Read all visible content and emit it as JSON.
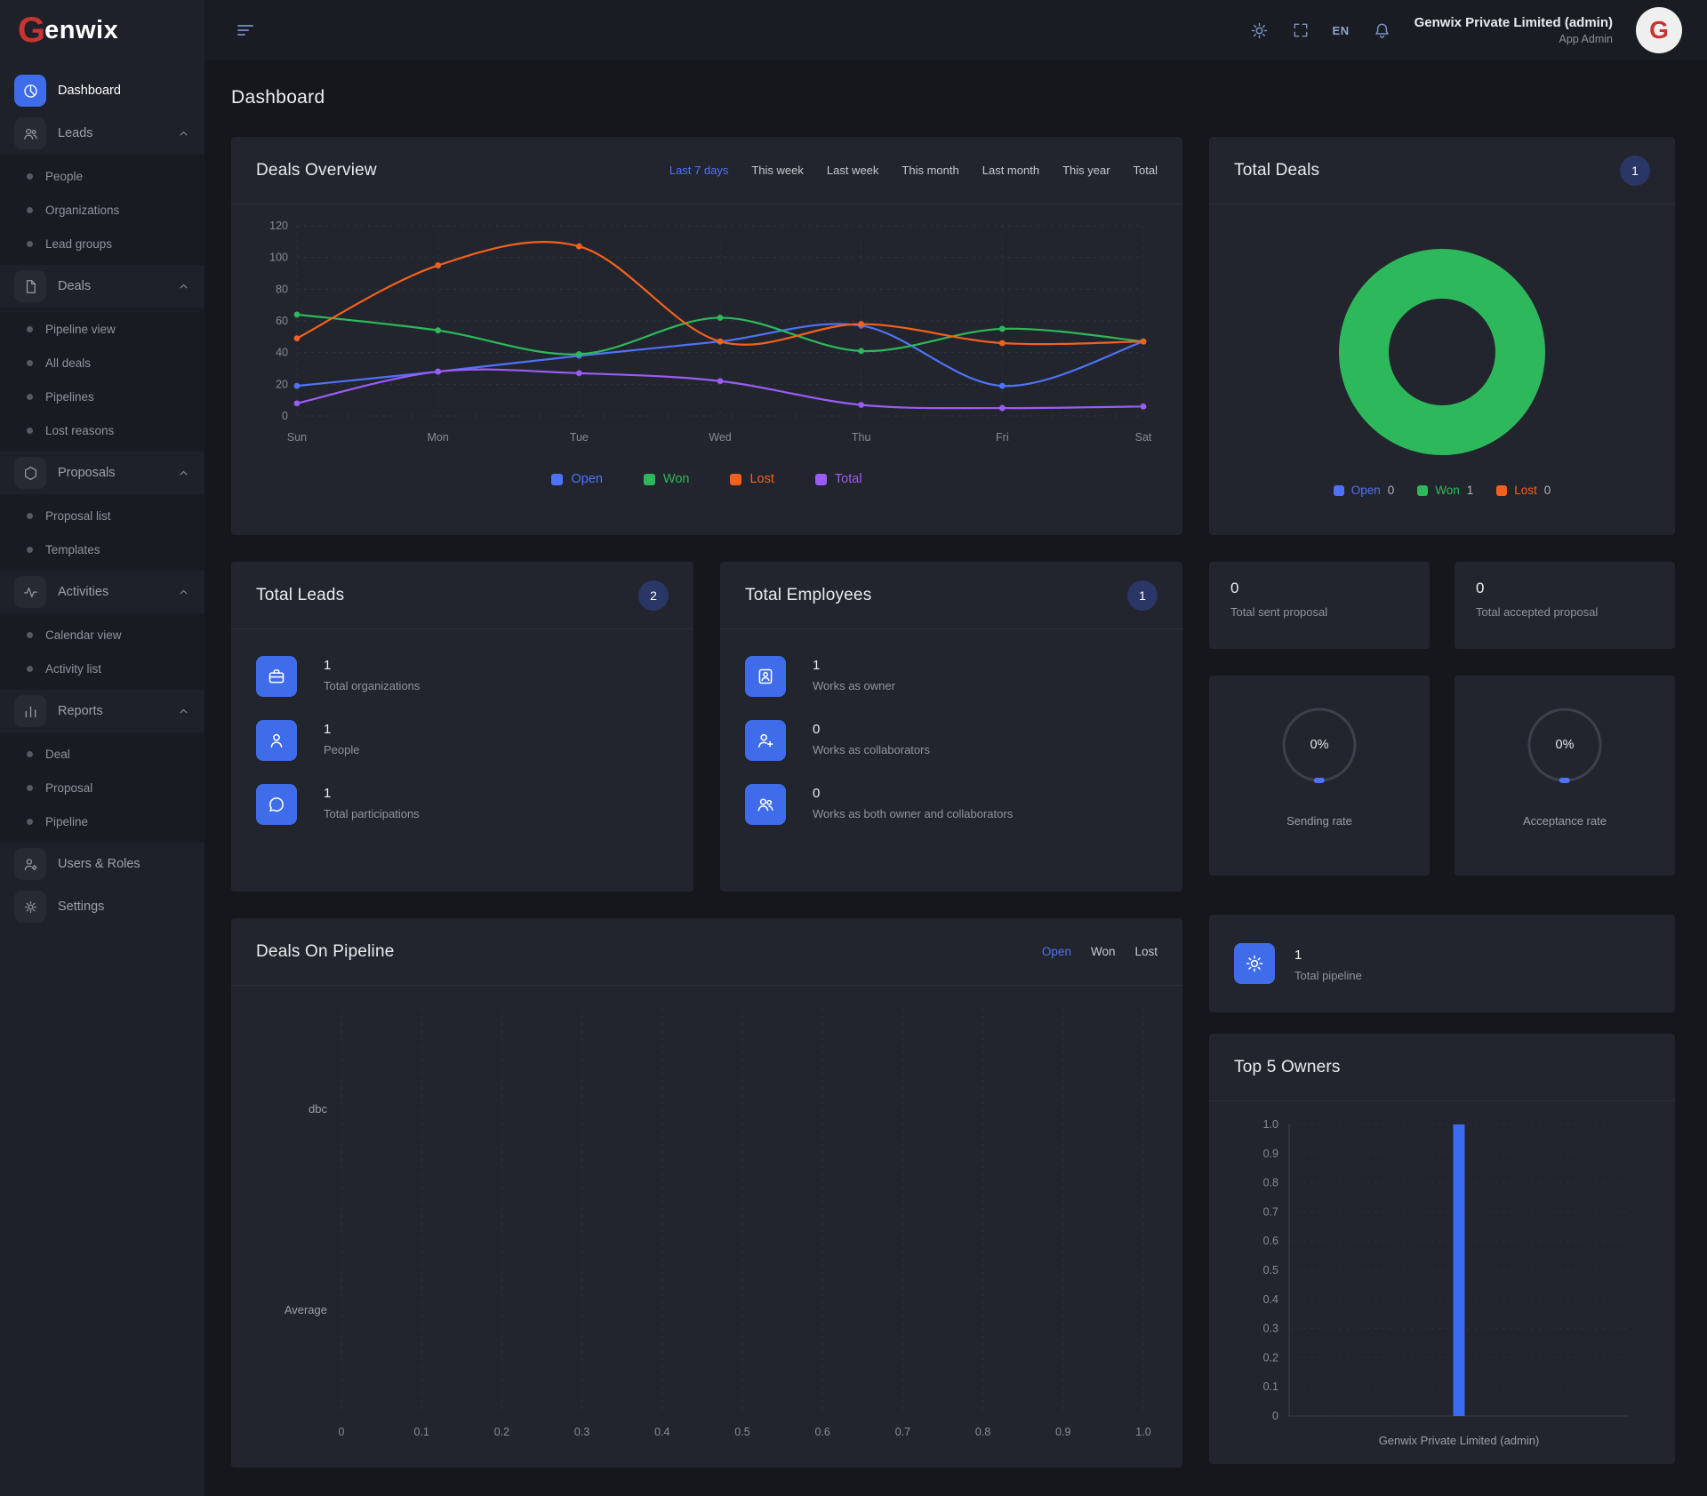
{
  "brand": {
    "name": "Genwix",
    "logo_first": "G",
    "logo_rest": "enwix"
  },
  "topbar": {
    "lang": "EN",
    "company": "Genwix Private Limited (admin)",
    "role": "App Admin"
  },
  "page": {
    "title": "Dashboard"
  },
  "sidebar": {
    "items": [
      {
        "label": "Dashboard",
        "active": true
      },
      {
        "label": "Leads",
        "expanded": true,
        "children": [
          "People",
          "Organizations",
          "Lead groups"
        ]
      },
      {
        "label": "Deals",
        "expanded": true,
        "children": [
          "Pipeline view",
          "All deals",
          "Pipelines",
          "Lost reasons"
        ]
      },
      {
        "label": "Proposals",
        "expanded": true,
        "children": [
          "Proposal list",
          "Templates"
        ]
      },
      {
        "label": "Activities",
        "expanded": true,
        "children": [
          "Calendar view",
          "Activity list"
        ]
      },
      {
        "label": "Reports",
        "expanded": true,
        "children": [
          "Deal",
          "Proposal",
          "Pipeline"
        ]
      },
      {
        "label": "Users & Roles"
      },
      {
        "label": "Settings"
      }
    ]
  },
  "cards": {
    "deals_overview": {
      "title": "Deals Overview",
      "filters": [
        "Last 7 days",
        "This week",
        "Last week",
        "This month",
        "Last month",
        "This year",
        "Total"
      ],
      "active_filter": "Last 7 days"
    },
    "total_deals": {
      "title": "Total Deals",
      "badge": "1"
    },
    "total_leads": {
      "title": "Total Leads",
      "badge": "2",
      "items": [
        {
          "value": "1",
          "label": "Total organizations",
          "icon": "briefcase-icon"
        },
        {
          "value": "1",
          "label": "People",
          "icon": "person-icon"
        },
        {
          "value": "1",
          "label": "Total participations",
          "icon": "chat-icon"
        }
      ]
    },
    "total_employees": {
      "title": "Total Employees",
      "badge": "1",
      "items": [
        {
          "value": "1",
          "label": "Works as owner",
          "icon": "person-badge-icon"
        },
        {
          "value": "0",
          "label": "Works as collaborators",
          "icon": "person-plus-icon"
        },
        {
          "value": "0",
          "label": "Works as both owner and collaborators",
          "icon": "people-icon"
        }
      ]
    },
    "stats": [
      {
        "value": "0",
        "label": "Total sent proposal"
      },
      {
        "value": "0",
        "label": "Total accepted proposal"
      }
    ],
    "gauges": [
      {
        "value": "0%",
        "label": "Sending rate",
        "accent": "#4e73f8"
      },
      {
        "value": "0%",
        "label": "Acceptance rate",
        "accent": "#4e73f8"
      }
    ],
    "deals_on_pipeline": {
      "title": "Deals On Pipeline",
      "tabs": [
        "Open",
        "Won",
        "Lost"
      ],
      "active_tab": "Open"
    },
    "total_pipeline": {
      "value": "1",
      "label": "Total pipeline"
    },
    "top_owners": {
      "title": "Top 5 Owners"
    }
  },
  "chart_data": [
    {
      "id": "deals-overview-chart",
      "type": "line",
      "x": [
        "Sun",
        "Mon",
        "Tue",
        "Wed",
        "Thu",
        "Fri",
        "Sat"
      ],
      "ylim": [
        0,
        120
      ],
      "yticks": [
        "0",
        "20",
        "40",
        "60",
        "80",
        "100",
        "120"
      ],
      "series": [
        {
          "name": "Open",
          "color": "#4e73f8",
          "values": [
            19,
            28,
            38,
            47,
            57,
            19,
            47
          ]
        },
        {
          "name": "Won",
          "color": "#2eb85c",
          "values": [
            64,
            54,
            39,
            62,
            41,
            55,
            47
          ]
        },
        {
          "name": "Lost",
          "color": "#f4611d",
          "values": [
            49,
            95,
            107,
            47,
            58,
            46,
            47
          ]
        },
        {
          "name": "Total",
          "color": "#9b5cf6",
          "values": [
            8,
            28,
            27,
            22,
            7,
            5,
            6
          ]
        }
      ],
      "grid": "dashed",
      "legend_position": "bottom"
    },
    {
      "id": "total-deals-donut",
      "type": "pie",
      "donut": true,
      "slices": [
        {
          "label": "Open",
          "value": 0,
          "color": "#4e73f8"
        },
        {
          "label": "Won",
          "value": 1,
          "color": "#2eb85c"
        },
        {
          "label": "Lost",
          "value": 0,
          "color": "#f4611d"
        }
      ]
    },
    {
      "id": "deals-pipeline-chart",
      "type": "bar",
      "orientation": "horizontal",
      "categories": [
        "dbc",
        "Average"
      ],
      "values": [
        0,
        0
      ],
      "xlim": [
        0,
        1
      ],
      "xticks": [
        "0",
        "0.1",
        "0.2",
        "0.3",
        "0.4",
        "0.5",
        "0.6",
        "0.7",
        "0.8",
        "0.9",
        "1.0"
      ],
      "grid": "dashed"
    },
    {
      "id": "top-owners-chart",
      "type": "bar",
      "categories": [
        "Genwix Private Limited (admin)"
      ],
      "values": [
        1
      ],
      "ylim": [
        0,
        1
      ],
      "yticks": [
        "0",
        "0.1",
        "0.2",
        "0.3",
        "0.4",
        "0.5",
        "0.6",
        "0.7",
        "0.8",
        "0.9",
        "1.0"
      ],
      "bar_color": "#3a6cf0"
    }
  ]
}
